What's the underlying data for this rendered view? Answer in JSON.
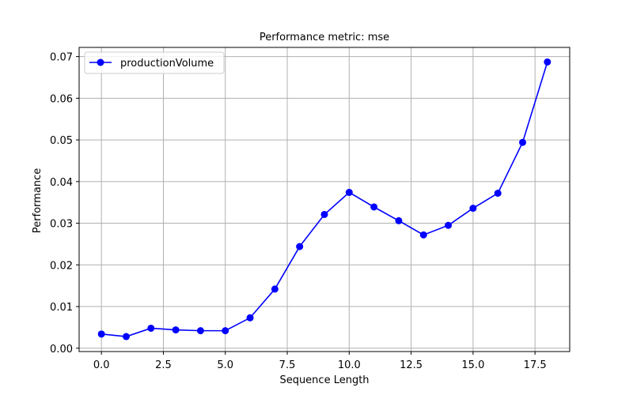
{
  "chart_data": {
    "type": "line",
    "title": "Performance metric: mse",
    "xlabel": "Sequence Length",
    "ylabel": "Performance",
    "xlim": [
      -0.9,
      18.9
    ],
    "ylim": [
      -0.0008,
      0.0722
    ],
    "x_ticks": [
      0.0,
      2.5,
      5.0,
      7.5,
      10.0,
      12.5,
      15.0,
      17.5
    ],
    "x_tick_labels": [
      "0.0",
      "2.5",
      "5.0",
      "7.5",
      "10.0",
      "12.5",
      "15.0",
      "17.5"
    ],
    "y_ticks": [
      0.0,
      0.01,
      0.02,
      0.03,
      0.04,
      0.05,
      0.06,
      0.07
    ],
    "y_tick_labels": [
      "0.00",
      "0.01",
      "0.02",
      "0.03",
      "0.04",
      "0.05",
      "0.06",
      "0.07"
    ],
    "grid": true,
    "legend_position": "upper-left",
    "series": [
      {
        "name": "productionVolume",
        "color": "#0000ff",
        "marker": "circle",
        "x": [
          0,
          1,
          2,
          3,
          4,
          5,
          6,
          7,
          8,
          9,
          10,
          11,
          12,
          13,
          14,
          15,
          16,
          17,
          18
        ],
        "y": [
          0.0034,
          0.0028,
          0.0048,
          0.0044,
          0.0042,
          0.0042,
          0.0073,
          0.0142,
          0.0244,
          0.0321,
          0.0374,
          0.0339,
          0.0306,
          0.0272,
          0.0295,
          0.0336,
          0.0372,
          0.0494,
          0.0687
        ]
      }
    ]
  }
}
